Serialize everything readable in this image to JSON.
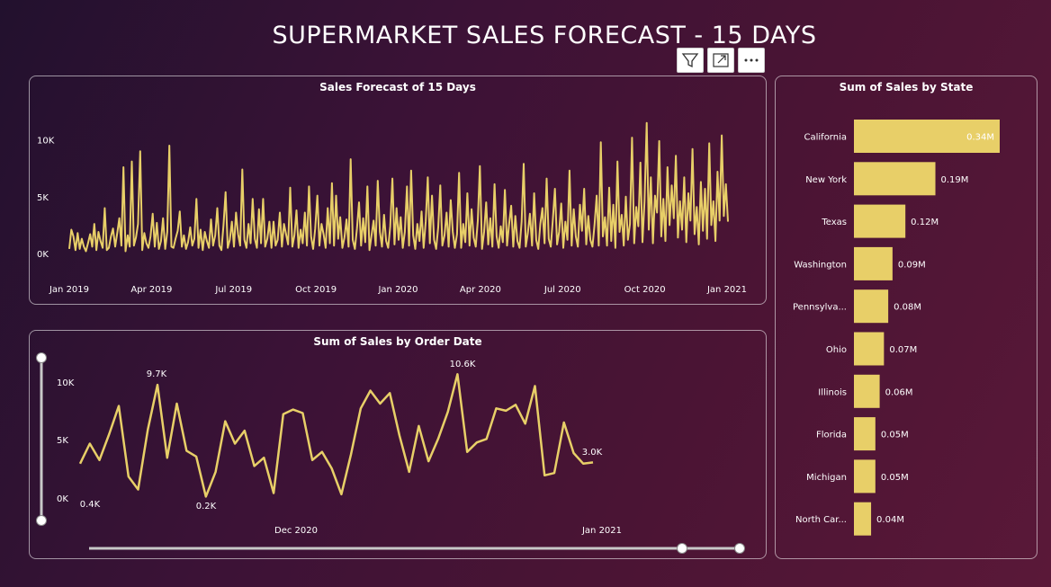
{
  "header": {
    "title": "SUPERMARKET SALES FORECAST - 15 DAYS"
  },
  "toolbar": {
    "filter": "filter-icon",
    "expand": "expand-icon",
    "more": "more-options-icon"
  },
  "colors": {
    "series": "#e8cf68",
    "panel_border": "#cfc3cd",
    "text": "#ffffff"
  },
  "chart_data": [
    {
      "type": "line",
      "title": "Sales Forecast of 15 Days",
      "x_tick_labels": [
        "Jan 2019",
        "Apr 2019",
        "Jul 2019",
        "Oct 2019",
        "Jan 2020",
        "Apr 2020",
        "Jul 2020",
        "Oct 2020",
        "Jan 2021"
      ],
      "y_tick_labels": [
        "10K",
        "5K",
        "0K"
      ],
      "ylim": [
        0,
        11000
      ],
      "series": [
        {
          "values": [
            400,
            2100,
            1500,
            300,
            1800,
            400,
            1300,
            600,
            200,
            900,
            1700,
            600,
            2600,
            300,
            1900,
            1100,
            500,
            4000,
            300,
            500,
            1500,
            2200,
            600,
            1800,
            3100,
            700,
            7600,
            200,
            1600,
            600,
            8100,
            700,
            1400,
            2600,
            9000,
            300,
            1800,
            900,
            500,
            1500,
            3500,
            600,
            2700,
            400,
            1100,
            3100,
            400,
            1900,
            9500,
            600,
            500,
            1300,
            2000,
            3700,
            600,
            1600,
            400,
            1000,
            2300,
            700,
            1300,
            4800,
            500,
            2100,
            300,
            1900,
            1100,
            500,
            3000,
            700,
            1600,
            4000,
            700,
            300,
            2500,
            5400,
            500,
            1200,
            2800,
            600,
            3600,
            1700,
            700,
            7400,
            1200,
            500,
            2600,
            900,
            4800,
            1300,
            500,
            3900,
            900,
            4800,
            600,
            1300,
            2800,
            500,
            2800,
            700,
            1200,
            3600,
            600,
            2600,
            1700,
            800,
            5800,
            600,
            1600,
            3800,
            500,
            2100,
            900,
            3600,
            700,
            5900,
            1500,
            400,
            2200,
            5100,
            700,
            2600,
            1700,
            500,
            4000,
            900,
            6200,
            700,
            5100,
            1300,
            3200,
            500,
            1400,
            3000,
            600,
            8300,
            1200,
            400,
            2200,
            4500,
            700,
            3100,
            1000,
            5900,
            300,
            1600,
            2900,
            700,
            6400,
            1900,
            600,
            3400,
            1100,
            500,
            2400,
            6600,
            800,
            4000,
            1200,
            3200,
            500,
            1900,
            5900,
            700,
            7300,
            1600,
            400,
            2600,
            1100,
            3700,
            500,
            2800,
            6700,
            900,
            5100,
            1200,
            400,
            2300,
            6000,
            700,
            1600,
            3600,
            600,
            4700,
            1900,
            500,
            1700,
            7100,
            500,
            2600,
            1000,
            5300,
            700,
            3900,
            1400,
            600,
            2900,
            7700,
            400,
            1900,
            4500,
            800,
            3100,
            600,
            6100,
            1500,
            500,
            2400,
            1000,
            5600,
            700,
            2600,
            4200,
            600,
            3300,
            1100,
            500,
            2800,
            7900,
            600,
            1800,
            3500,
            700,
            5300,
            1200,
            400,
            2600,
            4000,
            900,
            6600,
            1300,
            600,
            3000,
            5700,
            800,
            1900,
            4400,
            500,
            2800,
            1200,
            7300,
            700,
            3900,
            1500,
            600,
            4300,
            2000,
            5700,
            800,
            3300,
            1200,
            600,
            2500,
            5100,
            700,
            9800,
            1500,
            3200,
            700,
            5800,
            1100,
            4300,
            500,
            8100,
            1900,
            3400,
            700,
            5000,
            1200,
            2600,
            10200,
            900,
            4100,
            2400,
            8000,
            1000,
            4600,
            11500,
            2100,
            6700,
            900,
            5100,
            3600,
            9900,
            1500,
            4800,
            1100,
            7600,
            2500,
            6000,
            3100,
            8600,
            1400,
            4600,
            2100,
            6700,
            1000,
            5300,
            2900,
            9200,
            1700,
            4100,
            800,
            6300,
            2000,
            5700,
            1300,
            9700,
            2500,
            4600,
            1100,
            7200,
            2900,
            10400,
            3300,
            6100,
            2800
          ]
        }
      ]
    },
    {
      "type": "line",
      "title": "Sum of Sales by Order Date",
      "x_tick_labels": [
        "Dec 2020",
        "Jan 2021"
      ],
      "y_tick_labels": [
        "10K",
        "5K",
        "0K"
      ],
      "ylim": [
        0,
        12000
      ],
      "data_labels": [
        "0.4K",
        "9.7K",
        "0.2K",
        "10.6K",
        "3.0K"
      ],
      "series": [
        {
          "values": [
            3000,
            4700,
            3300,
            5500,
            7900,
            1900,
            800,
            5900,
            9700,
            3500,
            8100,
            4100,
            3600,
            200,
            2300,
            6600,
            4700,
            5800,
            2800,
            3500,
            500,
            7200,
            7600,
            7300,
            3300,
            4000,
            2600,
            400,
            3800,
            7700,
            9200,
            8100,
            9000,
            5400,
            2300,
            6200,
            3200,
            5100,
            7400,
            10600,
            4000,
            4800,
            5100,
            7700,
            7500,
            8000,
            6400,
            9600,
            2000,
            2200,
            6500,
            3900,
            3000,
            3100
          ]
        }
      ]
    },
    {
      "type": "bar",
      "orientation": "horizontal",
      "title": "Sum of Sales by State",
      "categories": [
        "California",
        "New York",
        "Texas",
        "Washington",
        "Pennsylva...",
        "Ohio",
        "Illinois",
        "Florida",
        "Michigan",
        "North Car..."
      ],
      "values": [
        0.34,
        0.19,
        0.12,
        0.09,
        0.08,
        0.07,
        0.06,
        0.05,
        0.05,
        0.04
      ],
      "value_labels": [
        "0.34M",
        "0.19M",
        "0.12M",
        "0.09M",
        "0.08M",
        "0.07M",
        "0.06M",
        "0.05M",
        "0.05M",
        "0.04M"
      ],
      "unit": "M"
    }
  ]
}
